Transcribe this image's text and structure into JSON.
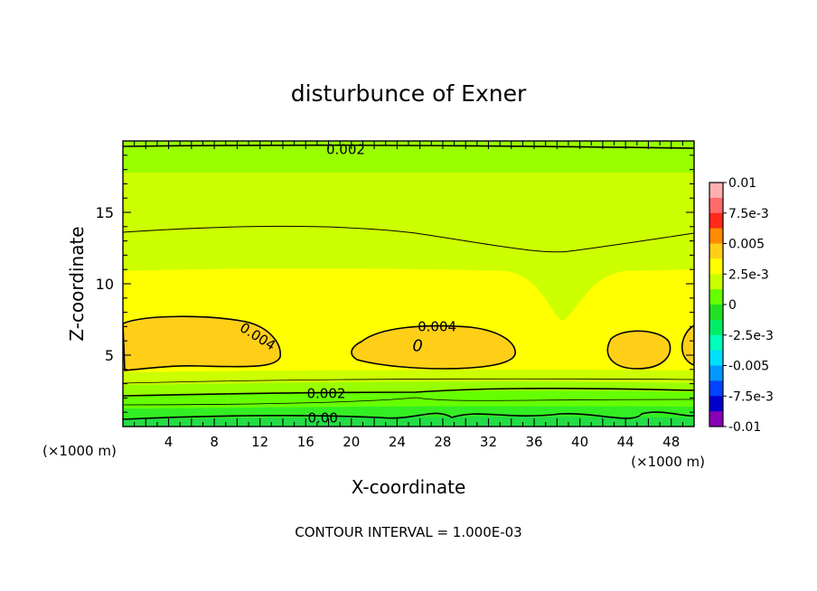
{
  "chart_data": {
    "type": "heatmap",
    "title": "disturbunce of Exner",
    "xlabel": "X-coordinate",
    "ylabel": "Z-coordinate",
    "x_unit_left": "(×1000 m)",
    "x_unit_right": "(×1000 m)",
    "xlim": [
      0,
      50
    ],
    "ylim": [
      0,
      20
    ],
    "x_ticks": [
      4,
      8,
      12,
      16,
      20,
      24,
      28,
      32,
      36,
      40,
      44,
      48
    ],
    "y_ticks": [
      5,
      10,
      15
    ],
    "contour_labels": [
      {
        "text": "0.002",
        "x": 19.5,
        "y": 19.4
      },
      {
        "text": "0.004",
        "x": 11.8,
        "y": 6.3
      },
      {
        "text": "0.004",
        "x": 27.5,
        "y": 7.0
      },
      {
        "text": "0",
        "x": 25.8,
        "y": 5.6
      },
      {
        "text": "0.002",
        "x": 17.8,
        "y": 2.3
      },
      {
        "text": "0.00",
        "x": 17.5,
        "y": 0.6
      }
    ],
    "colorbar": {
      "labels": [
        "0.01",
        "7.5e-3",
        "0.005",
        "2.5e-3",
        "0",
        "-2.5e-3",
        "-0.005",
        "-7.5e-3",
        "-0.01"
      ],
      "colors": [
        "#ffb0b0",
        "#ff6b6b",
        "#ff2a1a",
        "#ff8c00",
        "#ffcf18",
        "#ffff00",
        "#ccff00",
        "#66ff00",
        "#20e020",
        "#00ee66",
        "#00ffbb",
        "#00e0ff",
        "#0099ff",
        "#0044ff",
        "#0000cc",
        "#8a00b8"
      ]
    },
    "footer": "CONTOUR INTERVAL = 1.000E-03"
  }
}
